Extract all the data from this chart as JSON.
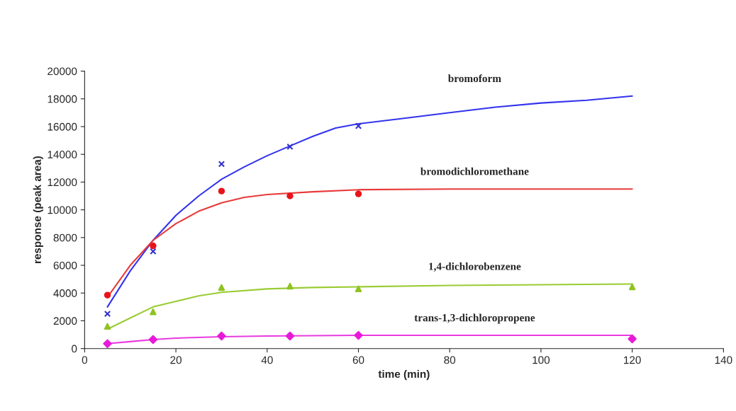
{
  "chart_data": {
    "type": "scatter",
    "xlabel": "time (min)",
    "ylabel": "response (peak area)",
    "xlim": [
      0,
      140
    ],
    "xticks": [
      0,
      20,
      40,
      60,
      80,
      100,
      120,
      140
    ],
    "ylim": [
      0,
      20000
    ],
    "yticks": [
      0,
      2000,
      4000,
      6000,
      8000,
      10000,
      12000,
      14000,
      16000,
      18000,
      20000
    ],
    "grid": false,
    "legend": false,
    "series": [
      {
        "marker": "cross",
        "color": "#3333cc",
        "x": [
          5,
          15,
          30,
          45,
          60
        ],
        "values": [
          2500,
          7000,
          13300,
          14550,
          16050
        ]
      },
      {
        "marker": "circle",
        "color": "#e8141b",
        "x": [
          5,
          15,
          30,
          45,
          60
        ],
        "values": [
          3850,
          7400,
          11350,
          11000,
          11150
        ]
      },
      {
        "marker": "triangle",
        "color": "#8fc31f",
        "x": [
          5,
          15,
          30,
          45,
          60,
          120
        ],
        "values": [
          1600,
          2650,
          4400,
          4500,
          4300,
          4450
        ]
      },
      {
        "marker": "diamond",
        "color": "#e81ad8",
        "x": [
          5,
          15,
          30,
          45,
          60,
          120
        ],
        "values": [
          350,
          650,
          900,
          900,
          950,
          700
        ]
      },
      {
        "type": "line",
        "name": "bromoform",
        "color": "#3333ee",
        "x": [
          5,
          10,
          15,
          20,
          25,
          30,
          35,
          40,
          45,
          50,
          55,
          60,
          70,
          80,
          90,
          100,
          110,
          120
        ],
        "values": [
          3000,
          5600,
          7800,
          9600,
          11000,
          12200,
          13100,
          13900,
          14600,
          15300,
          15900,
          16200,
          16600,
          17000,
          17400,
          17700,
          17900,
          18200
        ]
      },
      {
        "type": "line",
        "name": "bromodichloromethane",
        "color": "#e83a3a",
        "x": [
          5,
          10,
          15,
          20,
          25,
          30,
          35,
          40,
          50,
          60,
          80,
          120
        ],
        "values": [
          3700,
          6000,
          7800,
          9000,
          9900,
          10500,
          10900,
          11100,
          11300,
          11450,
          11500,
          11500
        ]
      },
      {
        "type": "line",
        "name": "1,4-dichlorobenzene",
        "color": "#99cc33",
        "x": [
          5,
          10,
          15,
          20,
          25,
          30,
          40,
          50,
          60,
          80,
          120
        ],
        "values": [
          1400,
          2200,
          3000,
          3400,
          3800,
          4050,
          4300,
          4400,
          4450,
          4550,
          4650
        ]
      },
      {
        "type": "line",
        "name": "trans-1,3-dichloropropene",
        "color": "#e83ae0",
        "x": [
          5,
          10,
          15,
          20,
          30,
          40,
          60,
          80,
          120
        ],
        "values": [
          350,
          500,
          650,
          750,
          850,
          900,
          950,
          950,
          950
        ]
      }
    ]
  }
}
